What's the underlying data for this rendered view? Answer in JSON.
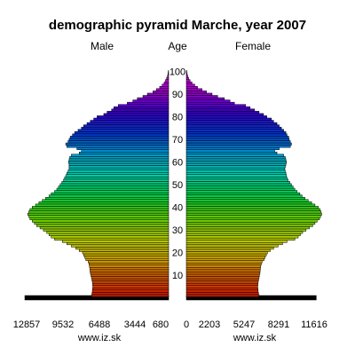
{
  "chart_data": {
    "type": "bar",
    "title": "demographic pyramid Marche, year 2007",
    "left_label": "Male",
    "center_label": "Age",
    "right_label": "Female",
    "age_ticks": [
      "10",
      "20",
      "30",
      "40",
      "50",
      "60",
      "70",
      "80",
      "90",
      "100"
    ],
    "male_axis_ticks": [
      "12857",
      "9532",
      "6488",
      "3444",
      "680"
    ],
    "female_axis_ticks": [
      "0",
      "2203",
      "5247",
      "8291",
      "11616"
    ],
    "credit": "www.iz.sk",
    "ages": [
      0,
      1,
      2,
      3,
      4,
      5,
      6,
      7,
      8,
      9,
      10,
      11,
      12,
      13,
      14,
      15,
      16,
      17,
      18,
      19,
      20,
      21,
      22,
      23,
      24,
      25,
      26,
      27,
      28,
      29,
      30,
      31,
      32,
      33,
      34,
      35,
      36,
      37,
      38,
      39,
      40,
      41,
      42,
      43,
      44,
      45,
      46,
      47,
      48,
      49,
      50,
      51,
      52,
      53,
      54,
      55,
      56,
      57,
      58,
      59,
      60,
      61,
      62,
      63,
      64,
      65,
      66,
      67,
      68,
      69,
      70,
      71,
      72,
      73,
      74,
      75,
      76,
      77,
      78,
      79,
      80,
      81,
      82,
      83,
      84,
      85,
      86,
      87,
      88,
      89,
      90,
      91,
      92,
      93,
      94,
      95,
      96,
      97,
      98,
      99,
      100
    ],
    "series": [
      {
        "name": "Male",
        "values": [
          12857,
          6900,
          6850,
          6820,
          6800,
          6780,
          6800,
          6820,
          6860,
          6900,
          6950,
          7000,
          7030,
          7050,
          7080,
          7120,
          7200,
          7400,
          7500,
          7600,
          7700,
          8000,
          8300,
          8700,
          9100,
          9500,
          10200,
          10500,
          10700,
          10900,
          11200,
          11500,
          11800,
          12000,
          12200,
          12400,
          12500,
          12600,
          12500,
          12400,
          12200,
          11900,
          11600,
          11300,
          11000,
          10700,
          10500,
          10200,
          10000,
          9850,
          9700,
          9550,
          9400,
          9300,
          9200,
          9100,
          9000,
          8900,
          8900,
          8900,
          8950,
          8900,
          8850,
          8700,
          8000,
          7800,
          8200,
          9100,
          9200,
          9000,
          8900,
          8800,
          8600,
          8400,
          8100,
          7800,
          7600,
          7300,
          7000,
          6700,
          6400,
          5800,
          5500,
          5100,
          4900,
          4500,
          3700,
          3200,
          2800,
          2300,
          1900,
          1400,
          1100,
          800,
          580,
          400,
          280,
          180,
          100,
          60,
          30
        ]
      },
      {
        "name": "Female",
        "values": [
          11616,
          6500,
          6450,
          6420,
          6400,
          6380,
          6400,
          6420,
          6460,
          6500,
          6540,
          6580,
          6600,
          6620,
          6650,
          6700,
          6780,
          6950,
          7050,
          7150,
          7250,
          7500,
          7800,
          8200,
          8600,
          9000,
          9700,
          10000,
          10200,
          10400,
          10700,
          11000,
          11300,
          11500,
          11700,
          11900,
          12000,
          12100,
          12050,
          11950,
          11800,
          11500,
          11200,
          10900,
          10600,
          10350,
          10150,
          9900,
          9700,
          9550,
          9400,
          9250,
          9100,
          9000,
          8950,
          8900,
          8850,
          8800,
          8850,
          8900,
          8950,
          8900,
          8850,
          8700,
          8100,
          7900,
          8300,
          9300,
          9400,
          9300,
          9200,
          9150,
          9000,
          8900,
          8700,
          8500,
          8300,
          8100,
          7800,
          7600,
          7200,
          6900,
          6500,
          6100,
          5700,
          5300,
          4300,
          3900,
          3400,
          2800,
          2300,
          1800,
          1400,
          1000,
          750,
          500,
          330,
          200,
          120,
          70,
          40
        ]
      }
    ],
    "colors": {
      "bar_outline": "#000000",
      "base_bar": "#000000",
      "gradient": [
        "#cc1100",
        "#cc5500",
        "#ccaa00",
        "#aacc00",
        "#55cc00",
        "#00cc44",
        "#00ccaa",
        "#0099cc",
        "#0033cc",
        "#3300cc",
        "#9900cc",
        "#cc00cc"
      ]
    }
  }
}
